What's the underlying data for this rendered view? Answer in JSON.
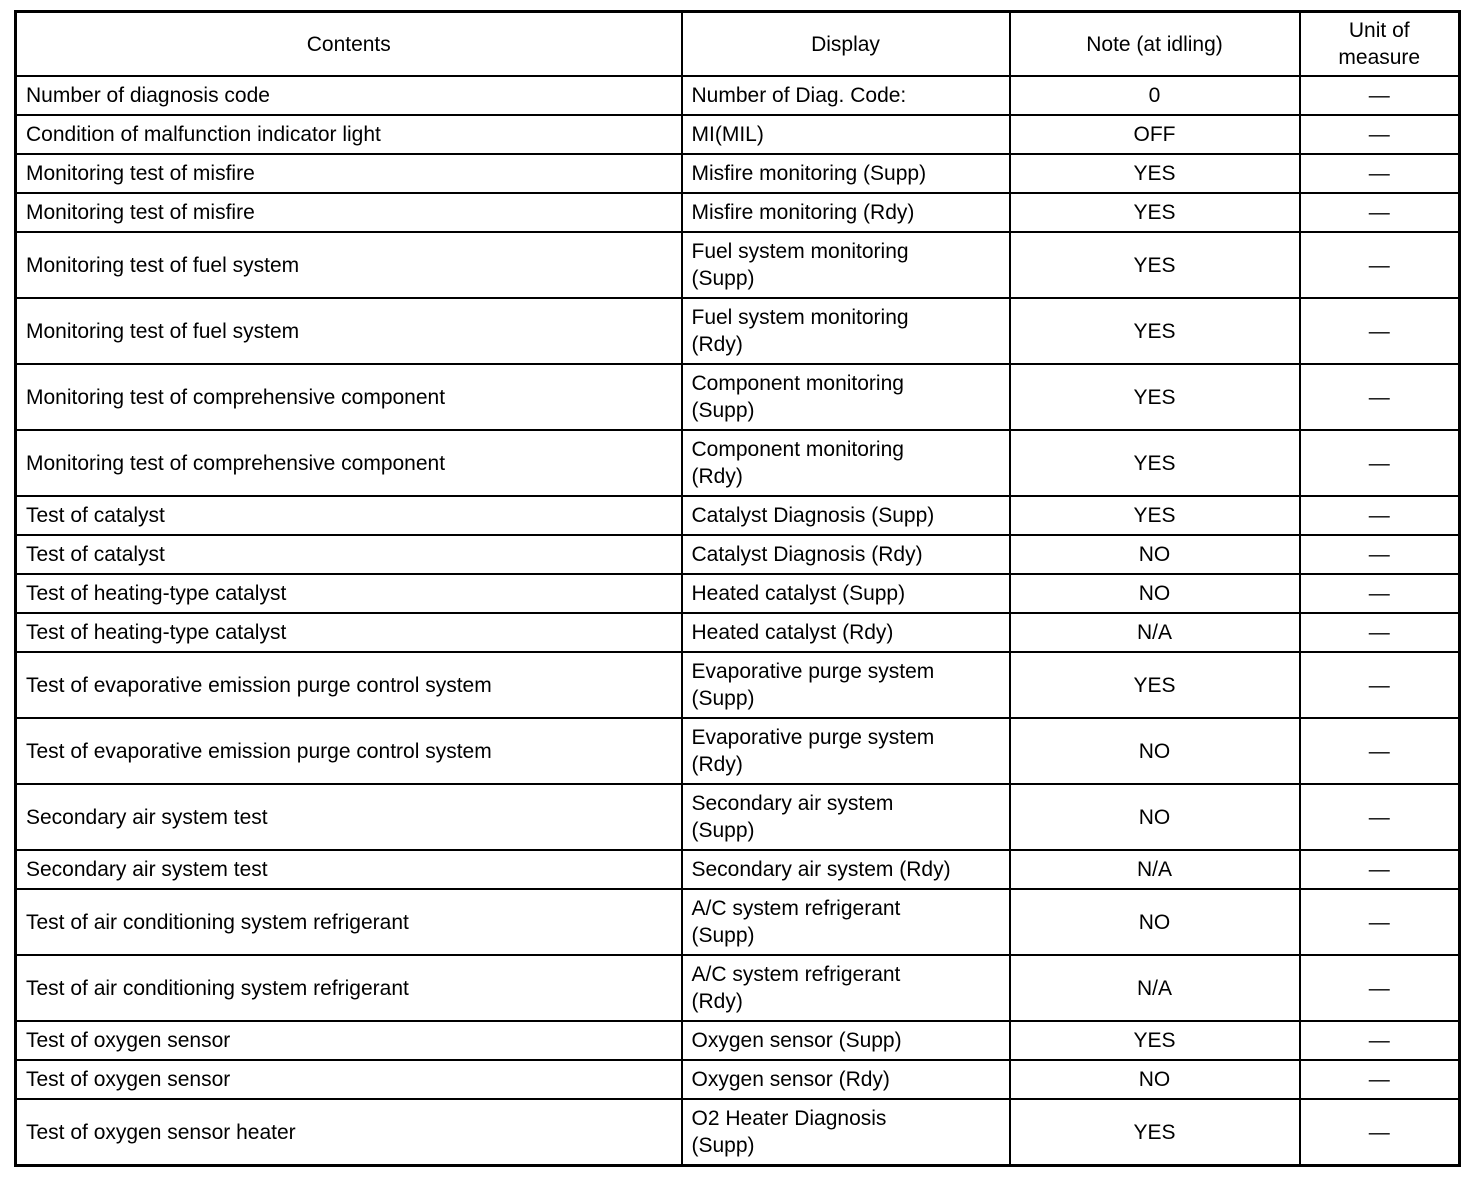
{
  "table": {
    "headers": [
      "Contents",
      "Display",
      "Note (at idling)",
      "Unit of\nmeasure"
    ],
    "rows": [
      {
        "contents": "Number of diagnosis code",
        "display": "Number of Diag. Code:",
        "note": "0",
        "unit": "—"
      },
      {
        "contents": "Condition of malfunction indicator light",
        "display": "MI(MIL)",
        "note": "OFF",
        "unit": "—"
      },
      {
        "contents": "Monitoring test of misfire",
        "display": "Misfire monitoring (Supp)",
        "note": "YES",
        "unit": "—"
      },
      {
        "contents": "Monitoring test of misfire",
        "display": "Misfire monitoring (Rdy)",
        "note": "YES",
        "unit": "—"
      },
      {
        "contents": "Monitoring test of fuel system",
        "display": "Fuel system monitoring\n(Supp)",
        "note": "YES",
        "unit": "—"
      },
      {
        "contents": "Monitoring test of fuel system",
        "display": "Fuel system monitoring\n(Rdy)",
        "note": "YES",
        "unit": "—"
      },
      {
        "contents": "Monitoring test of comprehensive component",
        "display": "Component monitoring\n(Supp)",
        "note": "YES",
        "unit": "—"
      },
      {
        "contents": "Monitoring test of comprehensive component",
        "display": "Component monitoring\n(Rdy)",
        "note": "YES",
        "unit": "—"
      },
      {
        "contents": "Test of catalyst",
        "display": "Catalyst Diagnosis (Supp)",
        "note": "YES",
        "unit": "—"
      },
      {
        "contents": "Test of catalyst",
        "display": "Catalyst Diagnosis (Rdy)",
        "note": "NO",
        "unit": "—"
      },
      {
        "contents": "Test of heating-type catalyst",
        "display": "Heated catalyst (Supp)",
        "note": "NO",
        "unit": "—"
      },
      {
        "contents": "Test of heating-type catalyst",
        "display": "Heated catalyst (Rdy)",
        "note": "N/A",
        "unit": "—"
      },
      {
        "contents": "Test of evaporative emission purge control system",
        "display": "Evaporative purge system\n(Supp)",
        "note": "YES",
        "unit": "—"
      },
      {
        "contents": "Test of evaporative emission purge control system",
        "display": "Evaporative purge system\n(Rdy)",
        "note": "NO",
        "unit": "—"
      },
      {
        "contents": "Secondary air system test",
        "display": "Secondary air system\n(Supp)",
        "note": "NO",
        "unit": "—"
      },
      {
        "contents": "Secondary air system test",
        "display": "Secondary air system (Rdy)",
        "note": "N/A",
        "unit": "—"
      },
      {
        "contents": "Test of air conditioning system refrigerant",
        "display": "A/C system refrigerant\n(Supp)",
        "note": "NO",
        "unit": "—"
      },
      {
        "contents": "Test of air conditioning system refrigerant",
        "display": "A/C system refrigerant\n(Rdy)",
        "note": "N/A",
        "unit": "—"
      },
      {
        "contents": "Test of oxygen sensor",
        "display": "Oxygen sensor (Supp)",
        "note": "YES",
        "unit": "—"
      },
      {
        "contents": "Test of oxygen sensor",
        "display": "Oxygen sensor (Rdy)",
        "note": "NO",
        "unit": "—"
      },
      {
        "contents": "Test of oxygen sensor heater",
        "display": "O2 Heater Diagnosis\n(Supp)",
        "note": "YES",
        "unit": "—"
      }
    ]
  }
}
